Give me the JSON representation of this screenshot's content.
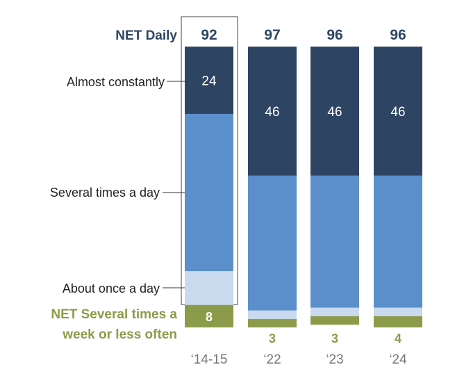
{
  "chart_data": {
    "type": "bar",
    "stacked": true,
    "categories": [
      "‘14-15",
      "‘22",
      "‘23",
      "‘24"
    ],
    "series": [
      {
        "name": "Almost constantly",
        "key": "almost_constantly",
        "color": "#2e4463",
        "values": [
          24,
          46,
          46,
          46
        ]
      },
      {
        "name": "Several times a day",
        "key": "several_times",
        "color": "#5b8fcb",
        "values": [
          56,
          48,
          47,
          47
        ]
      },
      {
        "name": "About once a day",
        "key": "once_a_day",
        "color": "#c9daee",
        "values": [
          12,
          3,
          3,
          3
        ]
      },
      {
        "name": "NET Several times a week or less often",
        "key": "net_less_often",
        "color": "#8c9b4a",
        "values": [
          8,
          3,
          3,
          4
        ]
      }
    ],
    "net_daily": {
      "label": "NET Daily",
      "values": [
        92,
        97,
        96,
        96
      ]
    },
    "net_less_often": {
      "label_line1": "NET Several times a",
      "label_line2": "week or less often",
      "values": [
        "8",
        "3",
        "3",
        "4"
      ]
    },
    "segment_labels": {
      "almost_constantly": [
        "24",
        "46",
        "46",
        "46"
      ]
    },
    "highlighted_category": "‘14-15",
    "ylim": [
      0,
      100
    ],
    "colors": {
      "net_daily_text": "#2e4463",
      "net_less_text": "#8c9b4a",
      "axis_text": "#767676",
      "label_text": "#222222"
    }
  }
}
